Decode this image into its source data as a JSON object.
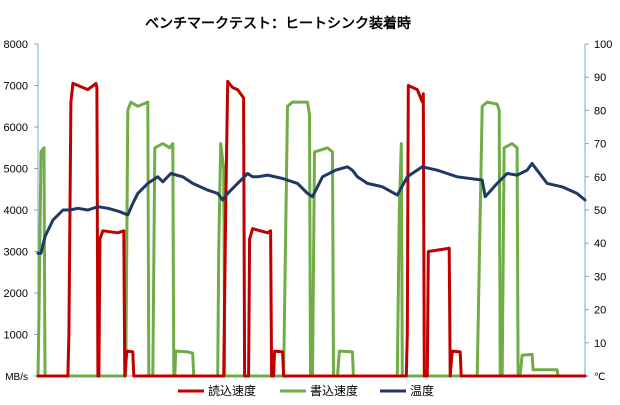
{
  "chart_data": {
    "type": "line",
    "title": "ベンチマークテスト：ヒートシンク装着時",
    "xlabel": "",
    "ylabel": "MB/s",
    "y2label": "℃",
    "ylim": [
      0,
      8000
    ],
    "y2lim": [
      0,
      100
    ],
    "xlim": [
      0,
      548
    ],
    "yticks": [
      1000,
      2000,
      3000,
      4000,
      5000,
      6000,
      7000,
      8000
    ],
    "y2ticks": [
      10,
      20,
      30,
      40,
      50,
      60,
      70,
      80,
      90,
      100
    ],
    "grid": false,
    "legend": "bottom",
    "colors": {
      "read": "#c00000",
      "write": "#70ad47",
      "temp": "#1f3864",
      "axis": "#7fa7cf"
    },
    "series": [
      {
        "name": "読込速度",
        "axis": "left",
        "points": [
          [
            0,
            0
          ],
          [
            30,
            0
          ],
          [
            31,
            1000
          ],
          [
            33,
            6600
          ],
          [
            35,
            7050
          ],
          [
            50,
            6900
          ],
          [
            58,
            7050
          ],
          [
            59,
            6950
          ],
          [
            60,
            0
          ],
          [
            61,
            0
          ],
          [
            62,
            3300
          ],
          [
            65,
            3500
          ],
          [
            80,
            3450
          ],
          [
            86,
            3500
          ],
          [
            87,
            0
          ],
          [
            89,
            600
          ],
          [
            95,
            580
          ],
          [
            96,
            0
          ],
          [
            186,
            0
          ],
          [
            188,
            4000
          ],
          [
            190,
            7100
          ],
          [
            195,
            6950
          ],
          [
            200,
            6900
          ],
          [
            206,
            6700
          ],
          [
            207,
            0
          ],
          [
            211,
            0
          ],
          [
            212,
            3300
          ],
          [
            215,
            3550
          ],
          [
            230,
            3450
          ],
          [
            233,
            3500
          ],
          [
            234,
            0
          ],
          [
            236,
            0
          ],
          [
            237,
            600
          ],
          [
            245,
            580
          ],
          [
            246,
            0
          ],
          [
            369,
            0
          ],
          [
            370,
            1000
          ],
          [
            371,
            7000
          ],
          [
            380,
            6900
          ],
          [
            385,
            6600
          ],
          [
            386,
            6800
          ],
          [
            387,
            0
          ],
          [
            390,
            0
          ],
          [
            391,
            3000
          ],
          [
            405,
            3050
          ],
          [
            412,
            3080
          ],
          [
            413,
            0
          ],
          [
            415,
            600
          ],
          [
            423,
            580
          ],
          [
            424,
            0
          ],
          [
            548,
            0
          ]
        ]
      },
      {
        "name": "書込速度",
        "axis": "left",
        "points": [
          [
            0,
            0
          ],
          [
            1,
            1500
          ],
          [
            3,
            5400
          ],
          [
            6,
            5500
          ],
          [
            7,
            0
          ],
          [
            30,
            0
          ],
          [
            88,
            0
          ],
          [
            90,
            6400
          ],
          [
            93,
            6600
          ],
          [
            100,
            6500
          ],
          [
            110,
            6600
          ],
          [
            111,
            0
          ],
          [
            115,
            0
          ],
          [
            117,
            5500
          ],
          [
            125,
            5600
          ],
          [
            132,
            5500
          ],
          [
            135,
            5600
          ],
          [
            136,
            0
          ],
          [
            137,
            0
          ],
          [
            138,
            600
          ],
          [
            150,
            580
          ],
          [
            155,
            550
          ],
          [
            156,
            0
          ],
          [
            180,
            0
          ],
          [
            181,
            3000
          ],
          [
            183,
            5600
          ],
          [
            186,
            5000
          ],
          [
            187,
            0
          ],
          [
            246,
            0
          ],
          [
            250,
            6500
          ],
          [
            255,
            6600
          ],
          [
            270,
            6600
          ],
          [
            272,
            6300
          ],
          [
            273,
            0
          ],
          [
            275,
            0
          ],
          [
            277,
            5400
          ],
          [
            290,
            5500
          ],
          [
            295,
            5400
          ],
          [
            296,
            0
          ],
          [
            300,
            0
          ],
          [
            302,
            600
          ],
          [
            315,
            580
          ],
          [
            316,
            0
          ],
          [
            360,
            0
          ],
          [
            362,
            4000
          ],
          [
            364,
            5600
          ],
          [
            365,
            0
          ],
          [
            440,
            0
          ],
          [
            445,
            6500
          ],
          [
            450,
            6600
          ],
          [
            460,
            6550
          ],
          [
            462,
            6400
          ],
          [
            463,
            0
          ],
          [
            465,
            0
          ],
          [
            467,
            5500
          ],
          [
            475,
            5600
          ],
          [
            480,
            5500
          ],
          [
            481,
            0
          ],
          [
            483,
            0
          ],
          [
            485,
            500
          ],
          [
            495,
            520
          ],
          [
            496,
            150
          ],
          [
            520,
            150
          ],
          [
            521,
            0
          ],
          [
            548,
            0
          ]
        ]
      },
      {
        "name": "温度",
        "axis": "right",
        "points": [
          [
            0,
            37
          ],
          [
            3,
            37
          ],
          [
            7,
            42
          ],
          [
            15,
            47
          ],
          [
            25,
            50
          ],
          [
            32,
            50
          ],
          [
            40,
            50.5
          ],
          [
            50,
            50
          ],
          [
            60,
            51
          ],
          [
            70,
            50.5
          ],
          [
            82,
            49.5
          ],
          [
            90,
            48.5
          ],
          [
            95,
            52
          ],
          [
            100,
            55
          ],
          [
            110,
            58
          ],
          [
            120,
            60
          ],
          [
            125,
            58.5
          ],
          [
            133,
            61
          ],
          [
            145,
            60
          ],
          [
            155,
            58
          ],
          [
            170,
            56
          ],
          [
            180,
            55
          ],
          [
            185,
            53
          ],
          [
            190,
            55
          ],
          [
            200,
            58
          ],
          [
            210,
            61
          ],
          [
            215,
            60
          ],
          [
            220,
            60
          ],
          [
            230,
            60.5
          ],
          [
            245,
            59.5
          ],
          [
            260,
            58
          ],
          [
            270,
            55
          ],
          [
            275,
            54
          ],
          [
            285,
            60
          ],
          [
            298,
            62
          ],
          [
            310,
            63
          ],
          [
            315,
            62
          ],
          [
            320,
            60
          ],
          [
            330,
            58
          ],
          [
            345,
            57
          ],
          [
            360,
            54.5
          ],
          [
            370,
            60
          ],
          [
            385,
            63
          ],
          [
            400,
            62
          ],
          [
            410,
            61
          ],
          [
            420,
            60
          ],
          [
            445,
            59
          ],
          [
            448,
            54
          ],
          [
            460,
            58
          ],
          [
            470,
            61
          ],
          [
            480,
            60.5
          ],
          [
            490,
            62
          ],
          [
            495,
            64
          ],
          [
            500,
            62
          ],
          [
            510,
            58
          ],
          [
            525,
            57
          ],
          [
            540,
            55
          ],
          [
            548,
            53
          ]
        ]
      }
    ]
  }
}
